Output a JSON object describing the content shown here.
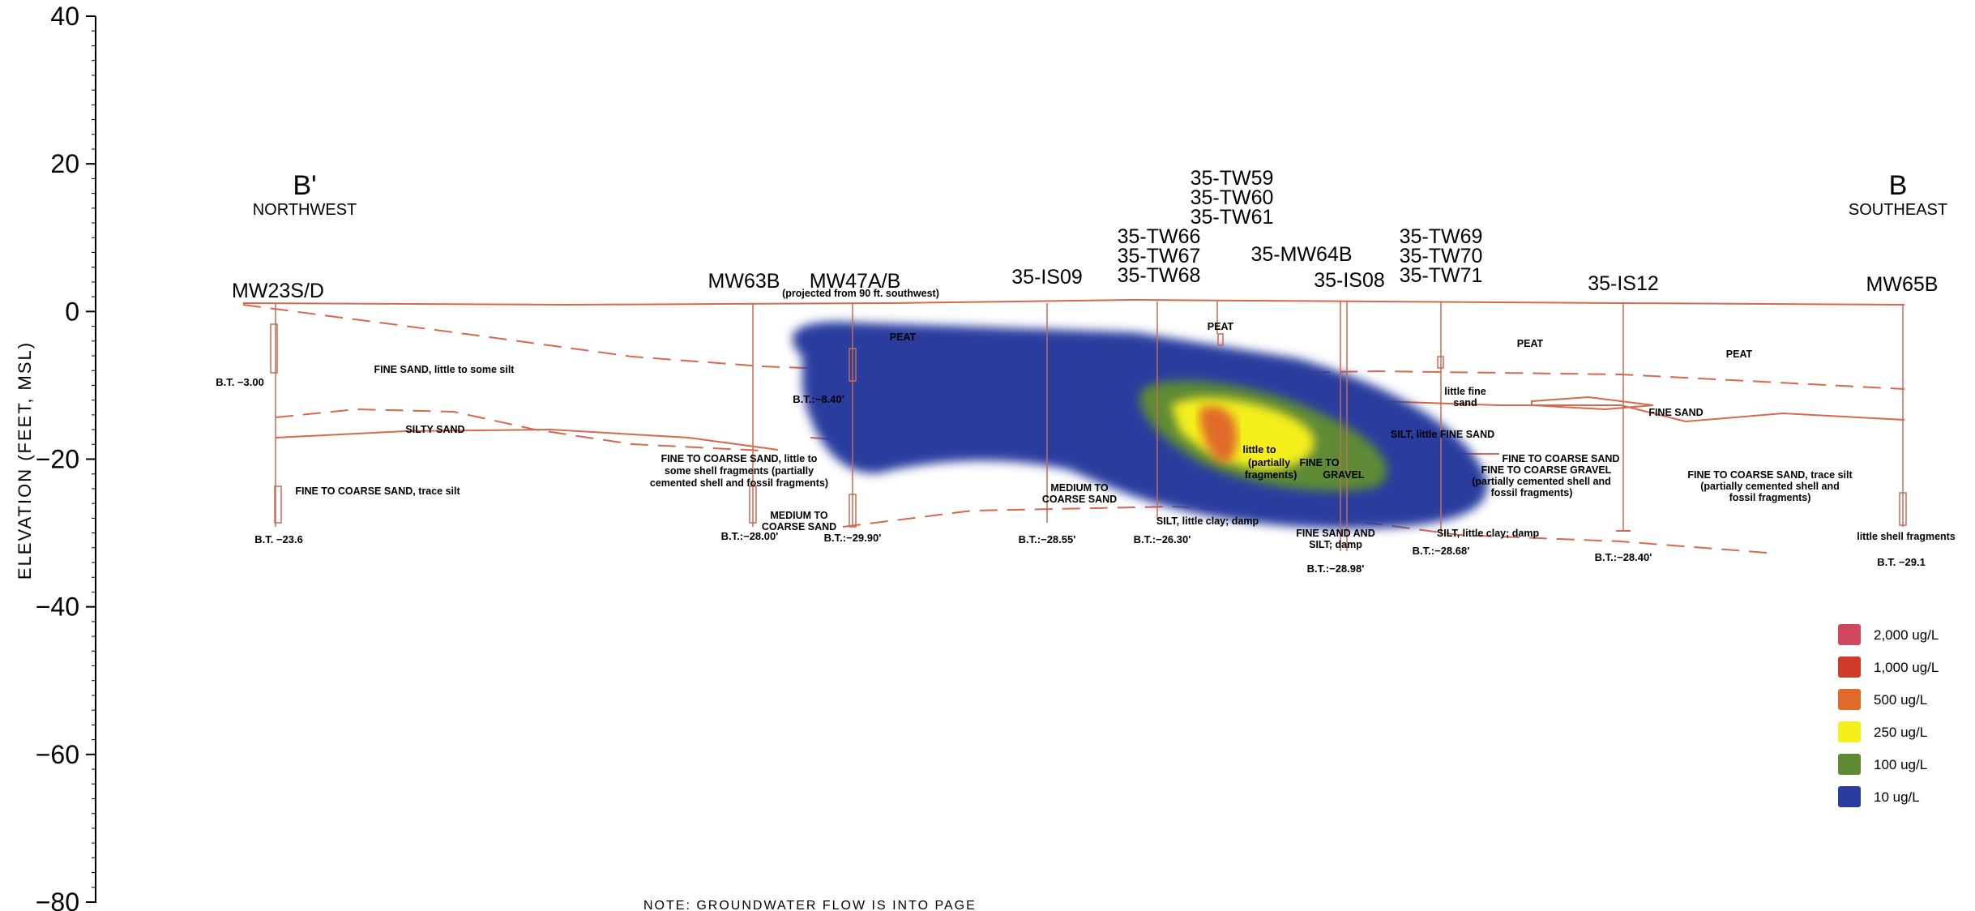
{
  "axis": {
    "ylabel": "ELEVATION (FEET, MSL)",
    "ylim": [
      -80,
      40
    ],
    "ticks": [
      {
        "value": 40,
        "label": "40"
      },
      {
        "value": 20,
        "label": "20"
      },
      {
        "value": 0,
        "label": "0"
      },
      {
        "value": -20,
        "label": "−20"
      },
      {
        "value": -40,
        "label": "−40"
      },
      {
        "value": -60,
        "label": "−60"
      },
      {
        "value": -80,
        "label": "−80"
      }
    ]
  },
  "section_ends": {
    "left": {
      "letter": "B'",
      "direction": "NORTHWEST"
    },
    "right": {
      "letter": "B",
      "direction": "SOUTHEAST"
    }
  },
  "wells": {
    "mw23sd": "MW23S/D",
    "mw63b": "MW63B",
    "mw47ab": "MW47A/B",
    "mw47ab_note": "(projected from 90 ft. southwest)",
    "is09": "35-IS09",
    "tw66": "35-TW66",
    "tw67": "35-TW67",
    "tw68": "35-TW68",
    "tw59": "35-TW59",
    "tw60": "35-TW60",
    "tw61": "35-TW61",
    "mw64b": "35-MW64B",
    "is08": "35-IS08",
    "tw69": "35-TW69",
    "tw70": "35-TW70",
    "tw71": "35-TW71",
    "is12": "35-IS12",
    "mw65b": "MW65B"
  },
  "boring_totals": {
    "mw23sd_shallow": "B.T. −3.00",
    "mw23sd_deep": "B.T. −23.6",
    "mw63b": "B.T.:−28.00'",
    "mw47ab_shallow": "B.T.:−8.40'",
    "mw47ab_deep": "B.T.:−29.90'",
    "is09": "B.T.:−28.55'",
    "tw68": "B.T.:−26.30'",
    "is08": "B.T.:−28.98'",
    "tw71": "B.T.:−28.68'",
    "is12": "B.T.:−28.40'",
    "mw65b": "B.T. −29.1"
  },
  "lithology": {
    "fine_sand_some_silt": "FINE SAND, little to some silt",
    "silty_sand": "SILTY SAND",
    "fine_coarse_trace_silt_left": "FINE TO COARSE SAND, trace silt",
    "mw63_desc_1": "FINE TO COARSE SAND, little to",
    "mw63_desc_2": "some shell fragments (partially",
    "mw63_desc_3": "cemented shell and fossil fragments)",
    "medium_to": "MEDIUM TO",
    "coarse_sand": "COARSE SAND",
    "peat_left": "PEAT",
    "peat_tw61": "PEAT",
    "peat_right_1": "PEAT",
    "peat_right_2": "PEAT",
    "little_fine": "little fine",
    "sand": "sand",
    "fine_sand_is12": "FINE SAND",
    "silt_fine_sand": "SILT, little FINE SAND",
    "fine_coarse_sand_tw71": "FINE TO COARSE SAND",
    "fine_coarse_gravel": "FINE TO COARSE GRAVEL",
    "cemented_shell": "(partially cemented shell and",
    "fossil_fragments": "fossil fragments)",
    "silt_clay_damp_tw68": "SILT, little clay; damp",
    "fine_sand_and": "FINE SAND AND",
    "silt_damp": "SILT; damp",
    "silt_clay_damp_tw71": "SILT, little clay; damp",
    "right_desc_1": "FINE TO COARSE SAND, trace silt",
    "right_desc_2": "(partially cemented shell and",
    "right_desc_3": "fossil fragments)",
    "little_shell": "little shell fragments",
    "plume_little_to": "little to",
    "plume_partially": "(partially",
    "plume_fine_to": "FINE TO",
    "plume_gravel": "GRAVEL",
    "plume_fragments": "fragments)"
  },
  "legend": [
    {
      "label": "2,000 ug/L",
      "color": "#d1475f"
    },
    {
      "label": "1,000 ug/L",
      "color": "#cf3b2b"
    },
    {
      "label": "500 ug/L",
      "color": "#e06a2a"
    },
    {
      "label": "250 ug/L",
      "color": "#f4ee1c"
    },
    {
      "label": "100 ug/L",
      "color": "#5e8a34"
    },
    {
      "label": "10 ug/L",
      "color": "#2a3d9f"
    }
  ],
  "note": "NOTE: GROUNDWATER FLOW IS INTO PAGE"
}
